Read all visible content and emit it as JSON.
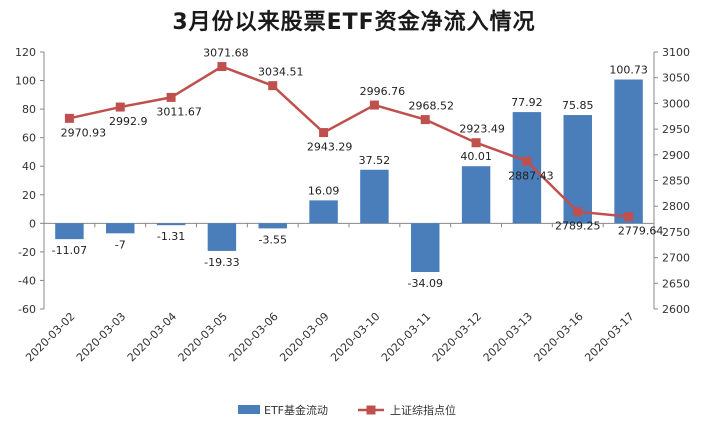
{
  "chart_data": {
    "type": "bar",
    "title": "3月份以来股票ETF资金净流入情况",
    "categories": [
      "2020-03-02",
      "2020-03-03",
      "2020-03-04",
      "2020-03-05",
      "2020-03-06",
      "2020-03-09",
      "2020-03-10",
      "2020-03-11",
      "2020-03-12",
      "2020-03-13",
      "2020-03-16",
      "2020-03-17"
    ],
    "series": [
      {
        "name": "ETF基金流动",
        "type": "bar",
        "axis": "left",
        "color": "#4a7ebb",
        "values": [
          -11.07,
          -7,
          -1.31,
          -19.33,
          -3.55,
          16.09,
          37.52,
          -34.09,
          40.01,
          77.92,
          75.85,
          100.73
        ],
        "labels": [
          "-11.07",
          "-7",
          "-1.31",
          "-19.33",
          "-3.55",
          "16.09",
          "37.52",
          "-34.09",
          "40.01",
          "77.92",
          "75.85",
          "100.73"
        ]
      },
      {
        "name": "上证综指点位",
        "type": "line",
        "axis": "right",
        "color": "#c0504d",
        "values": [
          2970.93,
          2992.9,
          3011.67,
          3071.68,
          3034.51,
          2943.29,
          2996.76,
          2968.52,
          2923.49,
          2887.43,
          2789.25,
          2779.64
        ],
        "labels": [
          "2970.93",
          "2992.9",
          "3011.67",
          "3071.68",
          "3034.51",
          "2943.29",
          "2996.76",
          "2968.52",
          "2923.49",
          "2887.43",
          "2789.25",
          "2779.64"
        ]
      }
    ],
    "ylim_left": [
      -60,
      120
    ],
    "yticks_left": [
      "-60",
      "-40",
      "-20",
      "0",
      "20",
      "40",
      "60",
      "80",
      "100",
      "120"
    ],
    "ylim_right": [
      2600,
      3100
    ],
    "yticks_right": [
      "2600",
      "2650",
      "2700",
      "2750",
      "2800",
      "2850",
      "2900",
      "2950",
      "3000",
      "3050",
      "3100"
    ],
    "grid": false,
    "legend_position": "bottom"
  }
}
